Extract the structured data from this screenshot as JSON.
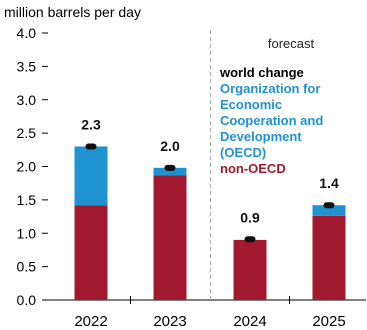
{
  "chart_data": {
    "type": "bar",
    "stacked": true,
    "unit_label": "million barrels per day",
    "categories": [
      "2022",
      "2023",
      "2024",
      "2025"
    ],
    "series": [
      {
        "name": "non-OECD",
        "color": "#a0192e",
        "values": [
          1.42,
          1.87,
          0.9,
          1.26
        ]
      },
      {
        "name": "Organization for Economic Cooperation and Development (OECD)",
        "color": "#1f92d0",
        "values": [
          0.88,
          0.11,
          0.0,
          0.16
        ]
      }
    ],
    "world_change": {
      "name": "world change",
      "values": [
        2.3,
        2.0,
        0.9,
        1.4
      ],
      "labels": [
        "2.3",
        "2.0",
        "0.9",
        "1.4"
      ],
      "marker_values": [
        2.3,
        1.98,
        0.91,
        1.42
      ]
    },
    "ylim": [
      0,
      4.0
    ],
    "yticks": [
      "0.0",
      "0.5",
      "1.0",
      "1.5",
      "2.0",
      "2.5",
      "3.0",
      "3.5",
      "4.0"
    ],
    "forecast_label": "forecast",
    "forecast_starts_after": "2023",
    "legend": {
      "position": "top-right",
      "lines": [
        {
          "text": "world change",
          "color": "#000000"
        },
        {
          "text": "Organization for",
          "color": "#1f92d0"
        },
        {
          "text": "Economic",
          "color": "#1f92d0"
        },
        {
          "text": "Cooperation and",
          "color": "#1f92d0"
        },
        {
          "text": "Development",
          "color": "#1f92d0"
        },
        {
          "text": "(OECD)",
          "color": "#1f92d0"
        },
        {
          "text": "non-OECD",
          "color": "#a0192e"
        }
      ]
    },
    "grid": false
  }
}
